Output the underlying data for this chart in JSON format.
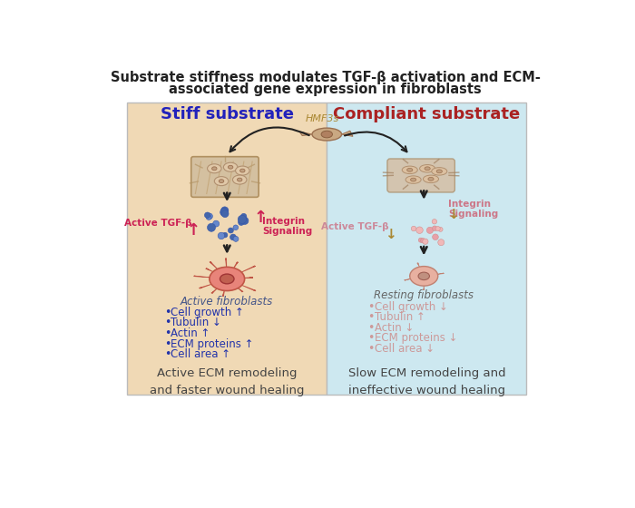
{
  "title_line1": "Substrate stiffness modulates TGF-β activation and ECM-",
  "title_line2": "associated gene expression in fibroblasts",
  "left_panel_title": "Stiff substrate",
  "right_panel_title": "Compliant substrate",
  "left_bg": "#f0d9b5",
  "right_bg": "#cde8f0",
  "border_color": "#bbbbbb",
  "left_title_color": "#2222bb",
  "right_title_color": "#aa2222",
  "hmf3s_color": "#aa8833",
  "hmf3s_label": "HMF3s",
  "left_tgf_color": "#cc2255",
  "right_tgf_color": "#cc8899",
  "left_integrin_color": "#cc2255",
  "right_integrin_color": "#cc7788",
  "bullet_color_left": "#2233aa",
  "bullet_color_right": "#cc9999",
  "bottom_text_color": "#444444",
  "title_color": "#222222",
  "arrow_color": "#222222",
  "left_bottom_text": "Active ECM remodeling\nand faster wound healing",
  "right_bottom_text": "Slow ECM remodeling and\nineffective wound healing",
  "left_fibroblast_label": "Active fibroblasts",
  "right_fibroblast_label": "Resting fibroblasts",
  "left_tgf_label": "Active TGF-β",
  "right_tgf_label": "Active TGF-β",
  "left_integrin_label": "Integrin\nSignaling",
  "right_integrin_label": "Integrin\nSignaling",
  "left_bullets": [
    "Cell growth ↑",
    "Tubulin ↓",
    "Actin ↑",
    "ECM proteins ↑",
    "Cell area ↑"
  ],
  "right_bullets": [
    "Cell growth ↓",
    "Tubulin ↑",
    "Actin ↓",
    "ECM proteins ↓",
    "Cell area ↓"
  ]
}
